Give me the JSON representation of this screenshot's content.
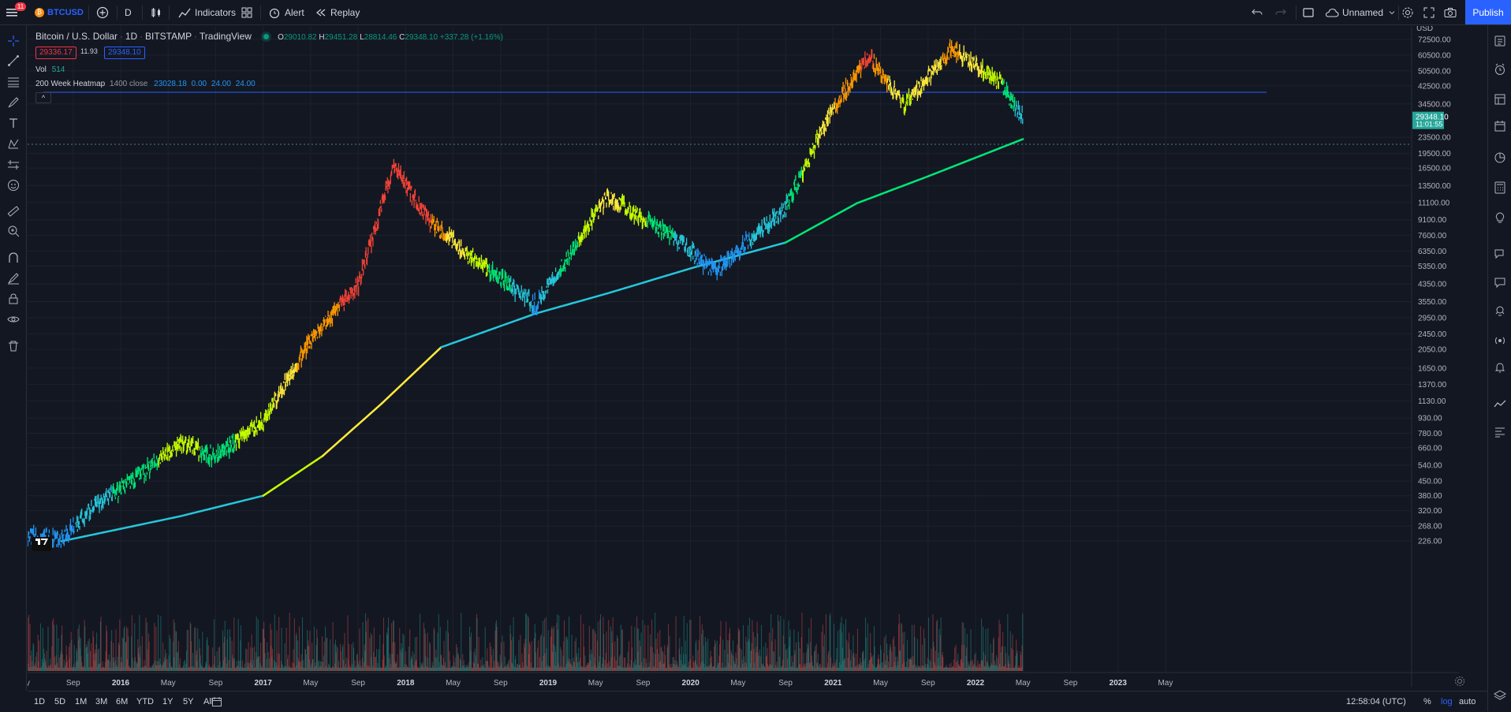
{
  "toolbar": {
    "notifications_count": "11",
    "symbol": "BTCUSD",
    "interval": "D",
    "indicators_label": "Indicators",
    "alert_label": "Alert",
    "replay_label": "Replay",
    "layout_name": "Unnamed",
    "publish_label": "Publish"
  },
  "legend": {
    "title": "Bitcoin / U.S. Dollar",
    "interval": "1D",
    "exchange": "BITSTAMP",
    "source": "TradingView",
    "ohlc": {
      "o_label": "O",
      "o": "29010.82",
      "h_label": "H",
      "h": "29451.28",
      "l_label": "L",
      "l": "28814.46",
      "c_label": "C",
      "c": "29348.10",
      "change": "+337.28 (+1.16%)"
    },
    "bid": "29336.17",
    "spread": "11.93",
    "ask": "29348.10",
    "vol_label": "Vol",
    "vol_value": "514",
    "indicator_name": "200 Week Heatmap",
    "indicator_params": "1400 close",
    "indicator_values": [
      "23028.18",
      "0.00",
      "24.00",
      "24.00"
    ],
    "collapse_glyph": "^"
  },
  "price_axis": {
    "currency": "USD",
    "ticks": [
      "72500.00",
      "60500.00",
      "50500.00",
      "42500.00",
      "34500.00",
      "23500.00",
      "19500.00",
      "16500.00",
      "13500.00",
      "11100.00",
      "9100.00",
      "7600.00",
      "6350.00",
      "5350.00",
      "4350.00",
      "3550.00",
      "2950.00",
      "2450.00",
      "2050.00",
      "1650.00",
      "1370.00",
      "1130.00",
      "930.00",
      "780.00",
      "660.00",
      "540.00",
      "450.00",
      "380.00",
      "320.00",
      "268.00",
      "226.00"
    ],
    "current_price": "29348.10",
    "countdown": "11:01:55"
  },
  "time_axis": {
    "ticks": [
      "ay",
      "Sep",
      "2016",
      "May",
      "Sep",
      "2017",
      "May",
      "Sep",
      "2018",
      "May",
      "Sep",
      "2019",
      "May",
      "Sep",
      "2020",
      "May",
      "Sep",
      "2021",
      "May",
      "Sep",
      "2022",
      "May",
      "Sep",
      "2023",
      "May"
    ]
  },
  "bottom": {
    "ranges": [
      "1D",
      "5D",
      "1M",
      "3M",
      "6M",
      "YTD",
      "1Y",
      "5Y",
      "All"
    ],
    "clock": "12:58:04 (UTC)",
    "percent": "%",
    "log": "log",
    "auto": "auto"
  },
  "chart_data": {
    "type": "candlestick",
    "scale": "log",
    "symbol": "BTCUSD",
    "exchange": "BITSTAMP",
    "interval": "1D",
    "ylim": [
      200,
      80000
    ],
    "x_range": [
      "2015-05",
      "2023-05"
    ],
    "price_series": [
      {
        "date": "2015-05",
        "close": 240
      },
      {
        "date": "2015-08",
        "close": 230
      },
      {
        "date": "2015-11",
        "close": 350
      },
      {
        "date": "2016-01",
        "close": 410
      },
      {
        "date": "2016-06",
        "close": 700
      },
      {
        "date": "2016-09",
        "close": 600
      },
      {
        "date": "2017-01",
        "close": 900
      },
      {
        "date": "2017-05",
        "close": 2300
      },
      {
        "date": "2017-09",
        "close": 4300
      },
      {
        "date": "2017-12",
        "close": 17000
      },
      {
        "date": "2018-03",
        "close": 9000
      },
      {
        "date": "2018-06",
        "close": 6300
      },
      {
        "date": "2018-12",
        "close": 3400
      },
      {
        "date": "2019-06",
        "close": 12000
      },
      {
        "date": "2019-12",
        "close": 7200
      },
      {
        "date": "2020-03",
        "close": 5000
      },
      {
        "date": "2020-09",
        "close": 10500
      },
      {
        "date": "2021-01",
        "close": 33000
      },
      {
        "date": "2021-04",
        "close": 60000
      },
      {
        "date": "2021-07",
        "close": 34000
      },
      {
        "date": "2021-11",
        "close": 65000
      },
      {
        "date": "2022-03",
        "close": 45000
      },
      {
        "date": "2022-05",
        "close": 29348
      }
    ],
    "ma_200w": [
      {
        "date": "2015-08",
        "value": 225
      },
      {
        "date": "2016-06",
        "value": 300
      },
      {
        "date": "2017-01",
        "value": 380
      },
      {
        "date": "2017-06",
        "value": 600
      },
      {
        "date": "2017-11",
        "value": 1100
      },
      {
        "date": "2018-04",
        "value": 2100
      },
      {
        "date": "2018-12",
        "value": 3100
      },
      {
        "date": "2019-06",
        "value": 3900
      },
      {
        "date": "2020-01",
        "value": 5200
      },
      {
        "date": "2020-09",
        "value": 7000
      },
      {
        "date": "2021-03",
        "value": 11000
      },
      {
        "date": "2021-09",
        "value": 15000
      },
      {
        "date": "2022-05",
        "value": 23028
      }
    ],
    "horizontal_line": 48000,
    "heat_colors": [
      "#2196f3",
      "#26c6da",
      "#00e676",
      "#c6ff00",
      "#ffeb3b",
      "#ff9800",
      "#f44336"
    ]
  }
}
